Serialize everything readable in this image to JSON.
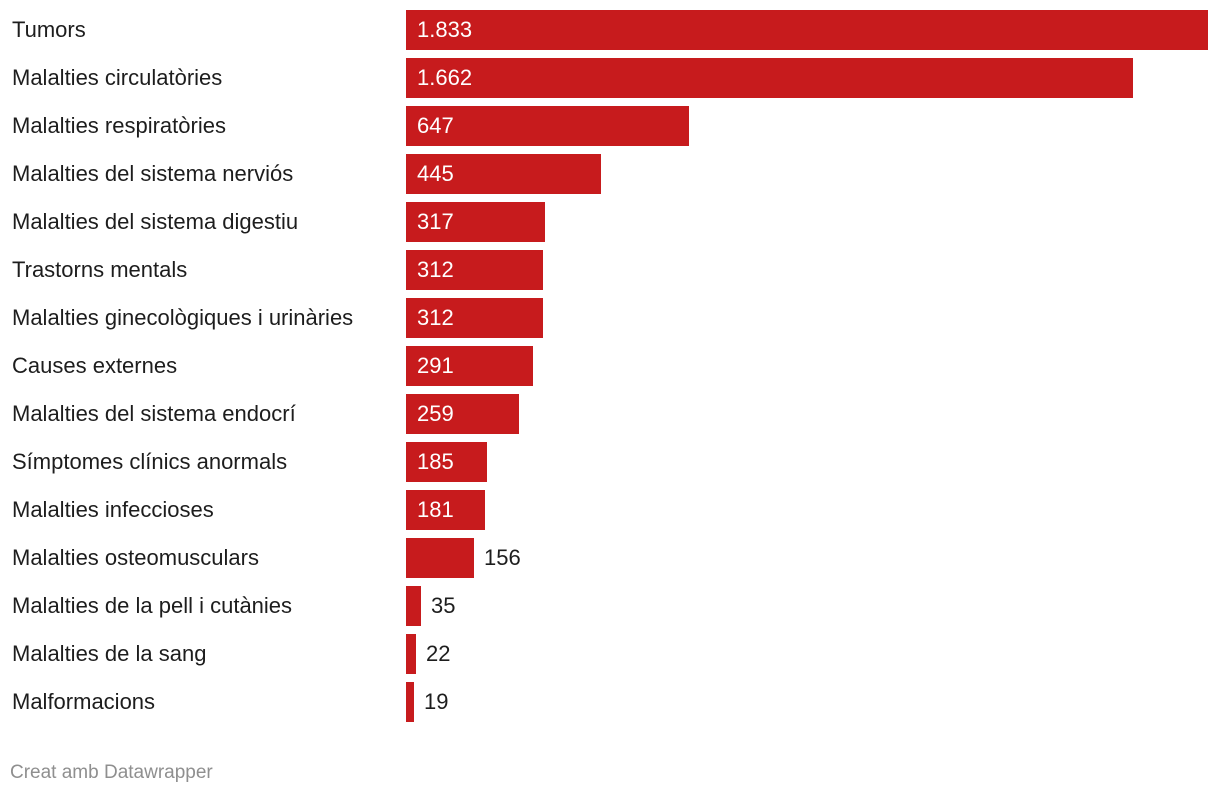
{
  "colors": {
    "bar": "#c71b1d",
    "label": "#1d1d1d",
    "value_inside": "#ffffff",
    "credit": "#8f8f8f"
  },
  "footer": {
    "credit": "Creat amb Datawrapper"
  },
  "chart_data": {
    "type": "bar",
    "orientation": "horizontal",
    "title": "",
    "xlabel": "",
    "ylabel": "",
    "grid": false,
    "categories": [
      "Tumors",
      "Malalties circulatòries",
      "Malalties respiratòries",
      "Malalties del sistema nerviós",
      "Malalties del sistema digestiu",
      "Trastorns mentals",
      "Malalties ginecològiques i urinàries",
      "Causes externes",
      "Malalties del sistema endocrí",
      "Símptomes clínics anormals",
      "Malalties infeccioses",
      "Malalties osteomusculars",
      "Malalties de la pell i cutànies",
      "Malalties de la sang",
      "Malformacions"
    ],
    "values": [
      1833,
      1662,
      647,
      445,
      317,
      312,
      312,
      291,
      259,
      185,
      181,
      156,
      35,
      22,
      19
    ],
    "value_labels": [
      "1.833",
      "1.662",
      "647",
      "445",
      "317",
      "312",
      "312",
      "291",
      "259",
      "185",
      "181",
      "156",
      "35",
      "22",
      "19"
    ],
    "xlim": [
      0,
      1833
    ]
  }
}
